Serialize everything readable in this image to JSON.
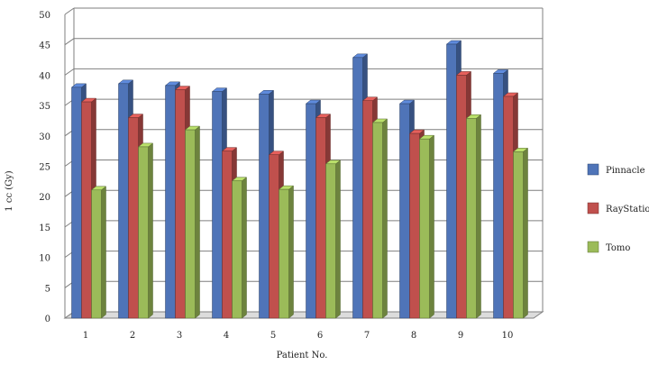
{
  "chart_data": {
    "type": "bar",
    "style": "3d-clustered",
    "title": "",
    "xlabel": "Patient No.",
    "ylabel": "1 cc (Gy)",
    "ylim": [
      0,
      50
    ],
    "yticks": [
      "0",
      "5",
      "10",
      "15",
      "20",
      "25",
      "30",
      "35",
      "40",
      "45",
      "50"
    ],
    "categories": [
      "1",
      "2",
      "3",
      "4",
      "5",
      "6",
      "7",
      "8",
      "9",
      "10"
    ],
    "grid": true,
    "legend_position": "right",
    "series": [
      {
        "name": "Pinnacle",
        "color": "#4f74b8",
        "values": [
          38.0,
          38.6,
          38.3,
          37.3,
          36.9,
          35.3,
          42.9,
          35.3,
          45.1,
          40.3
        ]
      },
      {
        "name": "RayStation",
        "color": "#c0504d",
        "values": [
          35.6,
          33.0,
          37.6,
          27.5,
          26.9,
          33.0,
          35.8,
          30.4,
          40.0,
          36.5
        ]
      },
      {
        "name": "Tomo",
        "color": "#9bbb59",
        "values": [
          21.1,
          28.2,
          31.0,
          22.6,
          21.2,
          25.4,
          32.2,
          29.5,
          32.9,
          27.4
        ]
      }
    ]
  }
}
